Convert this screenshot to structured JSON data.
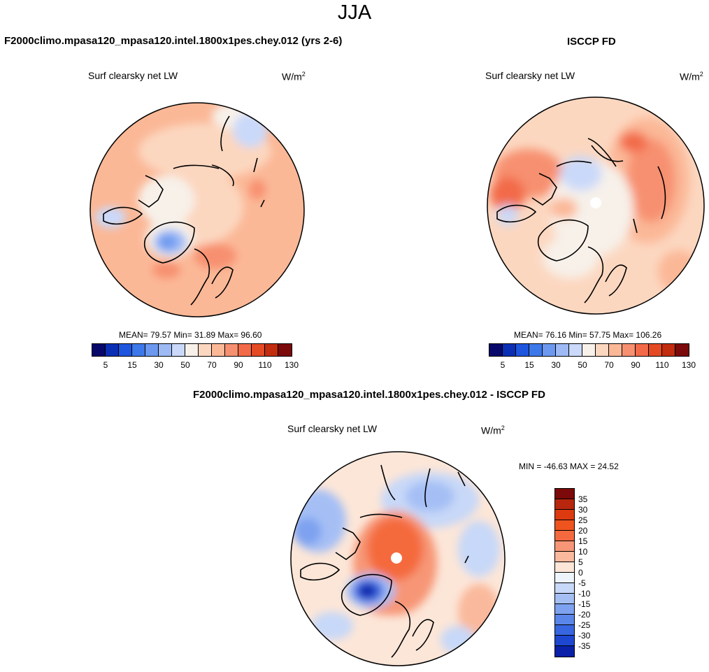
{
  "figure": {
    "title": "JJA"
  },
  "panels": [
    {
      "id": "model",
      "title": "F2000climo.mpasa120_mpasa120.intel.1800x1pes.chey.012 (yrs 2-6)",
      "left_string": "Surf clearsky net LW",
      "units_base": "W/m",
      "units_sup": "2",
      "stats": {
        "mean_label": "MEAN=",
        "mean": "79.57",
        "min_label": "Min=",
        "min": "31.89",
        "max_label": "Max=",
        "max": "96.60"
      },
      "stats_text": "MEAN=  79.57  Min=  31.89  Max=  96.60"
    },
    {
      "id": "obs",
      "title": "ISCCP FD",
      "left_string": "Surf clearsky net LW",
      "units_base": "W/m",
      "units_sup": "2",
      "stats": {
        "mean_label": "MEAN=",
        "mean": "76.16",
        "min_label": "Min=",
        "min": "57.75",
        "max_label": "Max=",
        "max": "106.26"
      },
      "stats_text": "MEAN=  76.16  Min=  57.75  Max=  106.26"
    },
    {
      "id": "diff",
      "title": "F2000climo.mpasa120_mpasa120.intel.1800x1pes.chey.012 - ISCCP FD",
      "left_string": "Surf clearsky net LW",
      "units_base": "W/m",
      "units_sup": "2",
      "stats_text": "MIN = -46.63 MAX =  24.52"
    }
  ],
  "colorbars": {
    "absolute": {
      "labels": [
        "5",
        "15",
        "30",
        "50",
        "70",
        "90",
        "110",
        "130"
      ],
      "colors": [
        "#08086b",
        "#0b2fb4",
        "#1e55de",
        "#3d78ea",
        "#6c98f0",
        "#9dbaf5",
        "#cad9f9",
        "#f7f1ea",
        "#fcd7c0",
        "#fbb897",
        "#f79070",
        "#f26a48",
        "#e44a24",
        "#c22c0f",
        "#7b0a0a"
      ]
    },
    "difference": {
      "labels": [
        "35",
        "30",
        "25",
        "20",
        "15",
        "10",
        "5",
        "0",
        "-5",
        "-10",
        "-15",
        "-20",
        "-25",
        "-30",
        "-35"
      ],
      "colors": [
        "#7d0a0a",
        "#b8260e",
        "#dd3a10",
        "#ef531e",
        "#f46a3e",
        "#f79676",
        "#fab99c",
        "#fce6d8",
        "#eef4fc",
        "#c7d8f8",
        "#a5bff5",
        "#7ea2f0",
        "#5a86ea",
        "#3766e0",
        "#1d47d1",
        "#0a20a8"
      ]
    }
  },
  "chart_data": {
    "type": "heatmap",
    "projection": "north polar stereographic",
    "variable": "Surf clearsky net LW",
    "units": "W/m2",
    "season": "JJA",
    "panels": [
      {
        "name": "F2000climo.mpasa120_mpasa120.intel.1800x1pes.chey.012 (yrs 2-6)",
        "mean": 79.57,
        "min": 31.89,
        "max": 96.6,
        "levels": [
          5,
          10,
          15,
          20,
          30,
          40,
          50,
          60,
          70,
          80,
          90,
          100,
          110,
          120,
          130
        ]
      },
      {
        "name": "ISCCP FD",
        "mean": 76.16,
        "min": 57.75,
        "max": 106.26,
        "levels": [
          5,
          10,
          15,
          20,
          30,
          40,
          50,
          60,
          70,
          80,
          90,
          100,
          110,
          120,
          130
        ]
      },
      {
        "name": "F2000climo.mpasa120_mpasa120.intel.1800x1pes.chey.012 - ISCCP FD",
        "min": -46.63,
        "max": 24.52,
        "levels": [
          -35,
          -30,
          -25,
          -20,
          -15,
          -10,
          -5,
          0,
          5,
          10,
          15,
          20,
          25,
          30,
          35
        ]
      }
    ]
  }
}
